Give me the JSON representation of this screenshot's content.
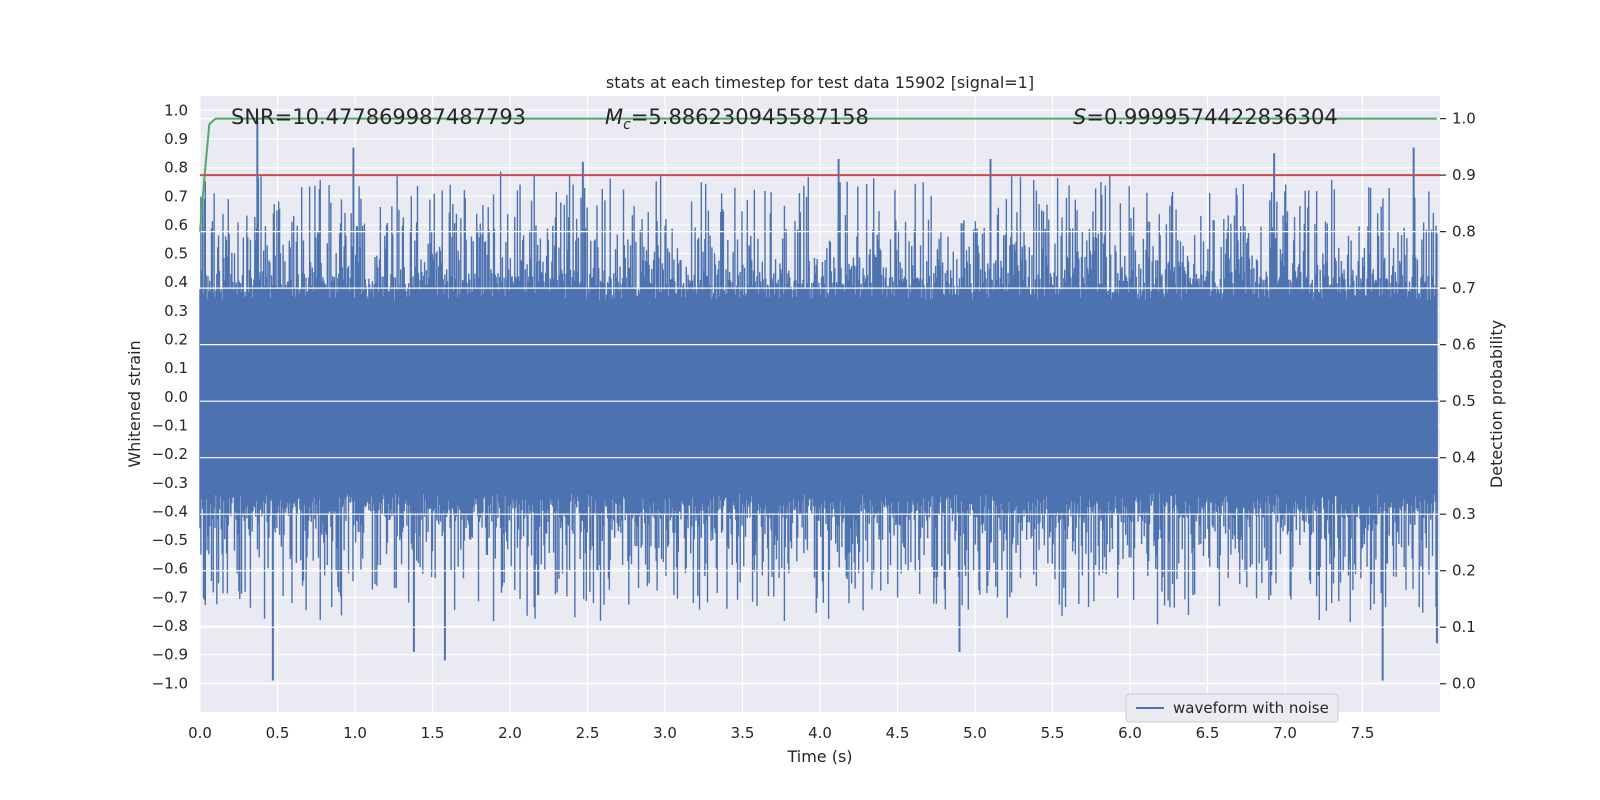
{
  "chart_data": {
    "type": "line",
    "title": "stats at each timestep for test data 15902 [signal=1]",
    "xlabel": "Time (s)",
    "ylabel_left": "Whitened strain",
    "ylabel_right": "Detection probability",
    "xlim": [
      0.0,
      8.0
    ],
    "ylim_left": [
      -1.1,
      1.05
    ],
    "ylim_right": [
      -0.05,
      1.04
    ],
    "x_ticks": [
      0.0,
      0.5,
      1.0,
      1.5,
      2.0,
      2.5,
      3.0,
      3.5,
      4.0,
      4.5,
      5.0,
      5.5,
      6.0,
      6.5,
      7.0,
      7.5
    ],
    "x_tick_labels": [
      "0.0",
      "0.5",
      "1.0",
      "1.5",
      "2.0",
      "2.5",
      "3.0",
      "3.5",
      "4.0",
      "4.5",
      "5.0",
      "5.5",
      "6.0",
      "6.5",
      "7.0",
      "7.5"
    ],
    "y_left_ticks": [
      1.0,
      0.9,
      0.8,
      0.7,
      0.6,
      0.5,
      0.4,
      0.3,
      0.2,
      0.1,
      0.0,
      -0.1,
      -0.2,
      -0.3,
      -0.4,
      -0.5,
      -0.6,
      -0.7,
      -0.8,
      -0.9,
      -1.0
    ],
    "y_left_tick_labels": [
      "1.0",
      "0.9",
      "0.8",
      "0.7",
      "0.6",
      "0.5",
      "0.4",
      "0.3",
      "0.2",
      "0.1",
      "0.0",
      "−0.1",
      "−0.2",
      "−0.3",
      "−0.4",
      "−0.5",
      "−0.6",
      "−0.7",
      "−0.8",
      "−0.9",
      "−1.0"
    ],
    "y_right_ticks": [
      1.0,
      0.9,
      0.8,
      0.7,
      0.6,
      0.5,
      0.4,
      0.3,
      0.2,
      0.1,
      0.0
    ],
    "y_right_tick_labels": [
      "1.0",
      "0.9",
      "0.8",
      "0.7",
      "0.6",
      "0.5",
      "0.4",
      "0.3",
      "0.2",
      "0.1",
      "0.0"
    ],
    "series": [
      {
        "name": "waveform with noise",
        "axis": "left",
        "color": "#4c72b0",
        "kind": "noise-band",
        "x_range": [
          0.0,
          7.98
        ],
        "core_amplitude": 0.42,
        "notable_peaks": [
          [
            0.37,
            0.96
          ],
          [
            0.99,
            0.87
          ],
          [
            2.47,
            0.82
          ],
          [
            4.12,
            0.83
          ],
          [
            5.1,
            0.83
          ],
          [
            6.93,
            0.85
          ],
          [
            7.83,
            0.87
          ]
        ],
        "notable_troughs": [
          [
            0.47,
            -0.99
          ],
          [
            1.58,
            -0.92
          ],
          [
            1.38,
            -0.89
          ],
          [
            4.9,
            -0.89
          ],
          [
            7.63,
            -0.99
          ],
          [
            7.98,
            -0.86
          ]
        ]
      },
      {
        "name": "detection probability",
        "axis": "right",
        "color": "#55a868",
        "x": [
          0.0,
          0.03,
          0.06,
          0.1,
          0.2,
          0.5,
          1.0,
          2.0,
          3.0,
          4.0,
          5.0,
          6.0,
          7.0,
          7.98
        ],
        "values": [
          0.8,
          0.9,
          0.99,
          1.0,
          1.0,
          1.0,
          1.0,
          1.0,
          1.0,
          1.0,
          1.0,
          1.0,
          1.0,
          1.0
        ]
      },
      {
        "name": "threshold",
        "axis": "right",
        "color": "#c44e52",
        "x": [
          0.0,
          8.0
        ],
        "values": [
          0.9,
          0.9
        ]
      }
    ],
    "legend": {
      "position": "lower-right",
      "entries": [
        "waveform with noise"
      ]
    },
    "annotations": {
      "snr": "SNR=10.477869987487793",
      "mc_symbol": "M",
      "mc_sub": "c",
      "mc_value": "=5.886230945587158",
      "s_symbol": "S",
      "s_value": "=0.9999574422836304"
    },
    "grid": true,
    "background": "#eaeaf2"
  }
}
